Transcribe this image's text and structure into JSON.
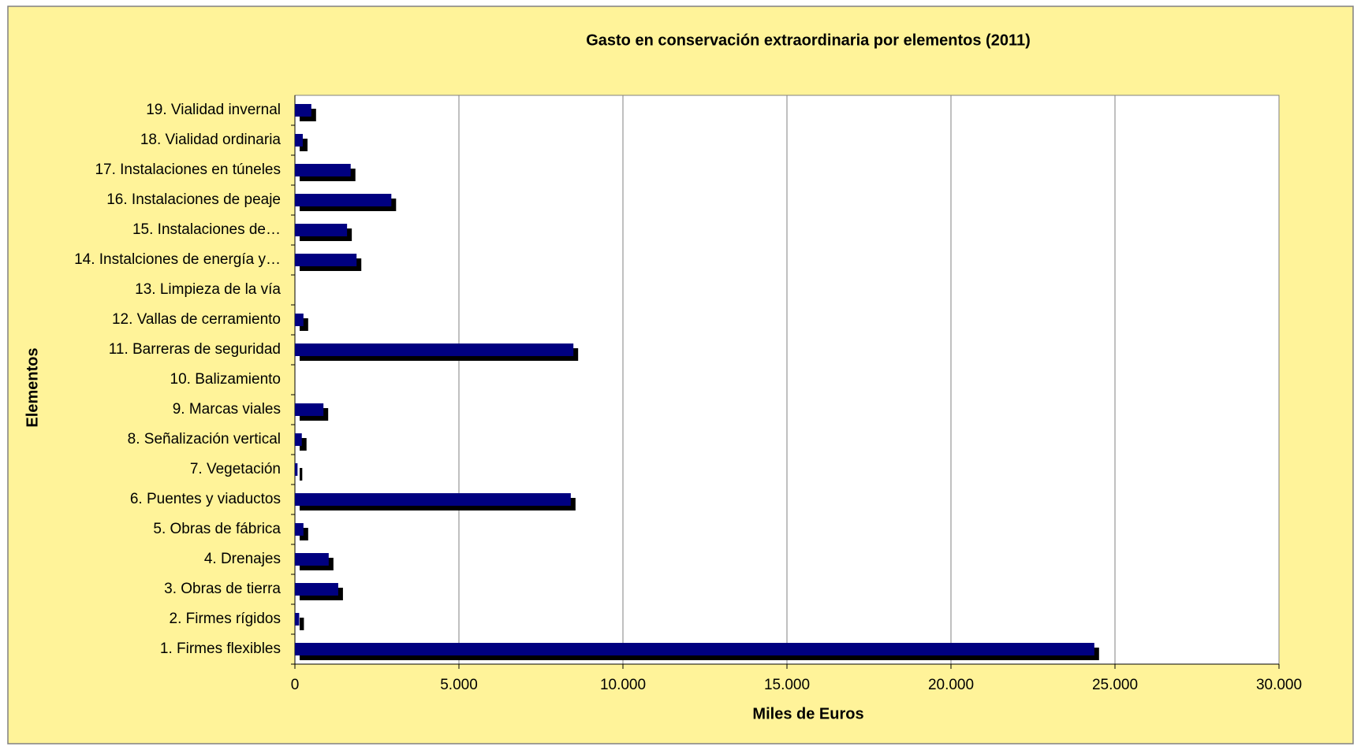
{
  "chart_data": {
    "type": "bar",
    "orientation": "horizontal",
    "title": "Gasto en conservación extraordinaria por elementos (2011)",
    "x_label": "Miles de Euros",
    "y_label": "Elementos",
    "categories": [
      "1. Firmes flexibles",
      "2. Firmes rígidos",
      "3. Obras de tierra",
      "4. Drenajes",
      "5. Obras de fábrica",
      "6. Puentes y viaductos",
      "7. Vegetación",
      "8. Señalización vertical",
      "9. Marcas viales",
      "10. Balizamiento",
      "11. Barreras de seguridad",
      "12. Vallas de cerramiento",
      "13. Limpieza de la vía",
      "14. Instalciones de energía y…",
      "15. Instalaciones de…",
      "16. Instalaciones de peaje",
      "17. Instalaciones en túneles",
      "18. Vialidad ordinaria",
      "19. Vialidad invernal"
    ],
    "values": [
      24370,
      130,
      1320,
      1030,
      260,
      8410,
      80,
      210,
      870,
      0,
      8490,
      260,
      0,
      1880,
      1590,
      2940,
      1700,
      240,
      500
    ],
    "color": "#000080",
    "xlim": [
      0,
      30000
    ],
    "xticks": [
      0,
      {
        "value": 5000,
        "label": "5.000"
      },
      {
        "value": 10000,
        "label": "10.000"
      },
      {
        "value": 15000,
        "label": "15.000"
      },
      {
        "value": 20000,
        "label": "20.000"
      },
      {
        "value": 25000,
        "label": "25.000"
      },
      {
        "value": 30000,
        "label": "30.000"
      }
    ],
    "grid": true
  }
}
